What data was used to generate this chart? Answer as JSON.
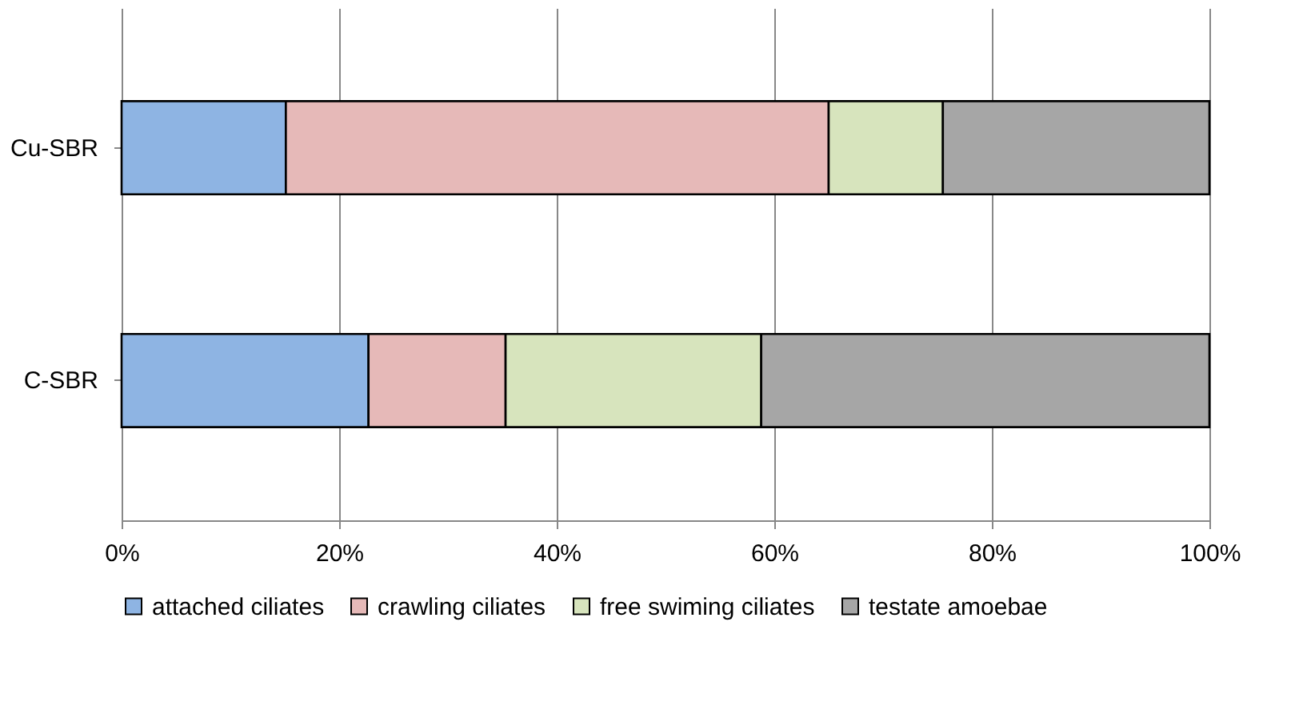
{
  "chart_data": {
    "type": "bar",
    "orientation": "horizontal",
    "stacked": true,
    "categories": [
      "Cu-SBR",
      "C-SBR"
    ],
    "series": [
      {
        "name": "attached ciliates",
        "color": "#8eb4e3",
        "values": [
          15.1,
          22.7
        ]
      },
      {
        "name": "crawling ciliates",
        "color": "#e6b9b8",
        "values": [
          49.9,
          12.6
        ]
      },
      {
        "name": "free swiming ciliates",
        "color": "#d7e4bd",
        "values": [
          10.5,
          23.5
        ]
      },
      {
        "name": "testate amoebae",
        "color": "#a6a6a6",
        "values": [
          24.5,
          41.2
        ]
      }
    ],
    "xlim": [
      0,
      100
    ],
    "xticks": [
      {
        "value": 0,
        "label": "0%"
      },
      {
        "value": 20,
        "label": "20%"
      },
      {
        "value": 40,
        "label": "40%"
      },
      {
        "value": 60,
        "label": "60%"
      },
      {
        "value": 80,
        "label": "80%"
      },
      {
        "value": 100,
        "label": "100%"
      }
    ],
    "grid": "x",
    "legend": "bottom"
  }
}
